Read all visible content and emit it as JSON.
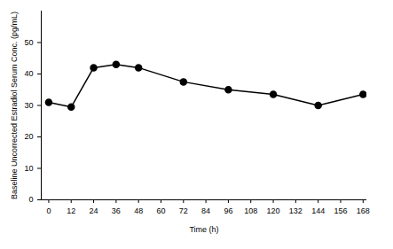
{
  "chart_data": {
    "type": "line",
    "x_label": "Time (h)",
    "y_label": "Baseline Uncorrected Estradiol Serum Conc. (pg/mL)",
    "x": [
      0,
      12,
      24,
      36,
      48,
      72,
      96,
      120,
      144,
      168
    ],
    "values": [
      31,
      29.5,
      42,
      43,
      42,
      37.5,
      35,
      33.5,
      30,
      33.5
    ],
    "color": "#000000",
    "marker": "circle",
    "xlim": [
      -4,
      170
    ],
    "xticks": [
      0,
      12,
      24,
      36,
      48,
      60,
      72,
      84,
      96,
      108,
      120,
      132,
      144,
      156,
      168
    ],
    "ylim": [
      0,
      60
    ],
    "yticks": [
      0,
      10,
      20,
      30,
      40,
      50
    ],
    "grid": false
  }
}
